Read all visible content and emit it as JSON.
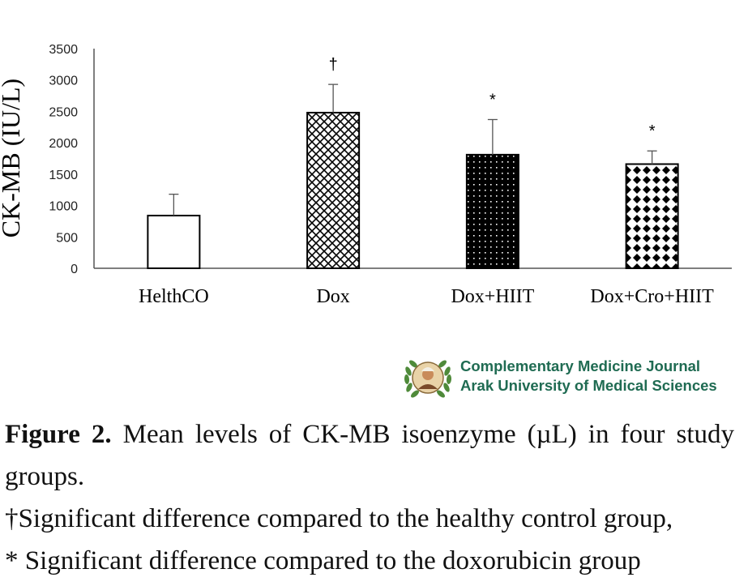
{
  "chart_data": {
    "type": "bar",
    "categories": [
      "HelthCO",
      "Dox",
      "Dox+HIIT",
      "Dox+Cro+HIIT"
    ],
    "values": [
      840,
      2480,
      1810,
      1660
    ],
    "errors": [
      340,
      450,
      560,
      210
    ],
    "annotations": [
      "",
      "†",
      "*",
      "*"
    ],
    "patterns": [
      "hollow",
      "crosshatch",
      "dots",
      "diamonds"
    ],
    "ylabel": "CK-MB (IU/L)",
    "ylim": [
      0,
      3500
    ],
    "yticks": [
      "0",
      "500",
      "1000",
      "1500",
      "2000",
      "2500",
      "3000",
      "3500"
    ],
    "grid": false
  },
  "logo": {
    "line1": "Complementary Medicine Journal",
    "line2": "Arak University of Medical Sciences",
    "text_color": "#1f6b52",
    "wreath_color": "#4f8a3a"
  },
  "caption": {
    "label": "Figure 2.",
    "text": " Mean levels of CK-MB isoenzyme (µL) in four study groups.",
    "note1": "†Significant difference compared to the healthy control group,",
    "note2": "* Significant difference compared to the doxorubicin group"
  }
}
